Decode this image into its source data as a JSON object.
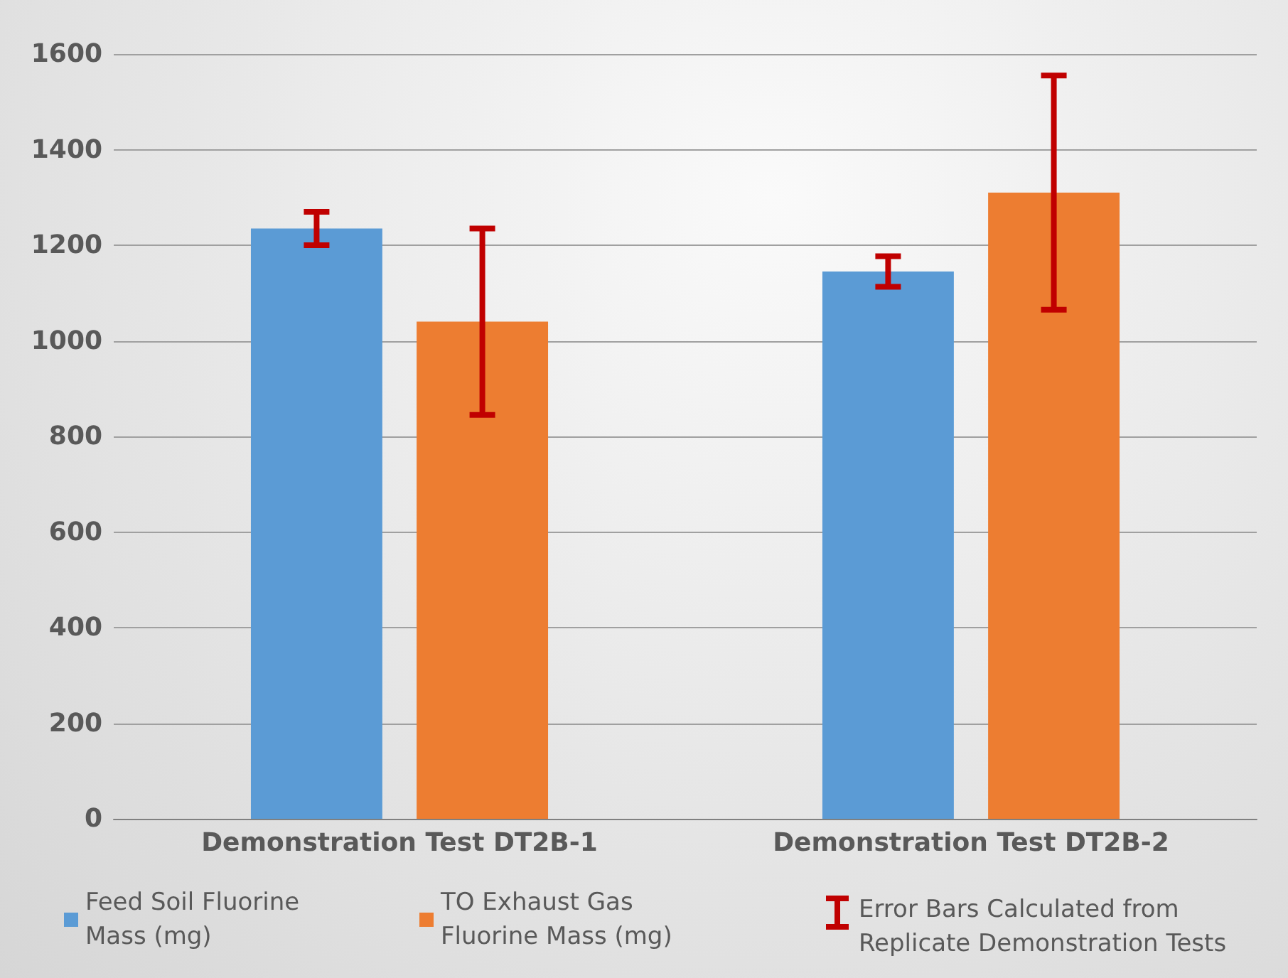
{
  "chart_data": {
    "type": "bar",
    "categories": [
      "Demonstration Test DT2B-1",
      "Demonstration Test DT2B-2"
    ],
    "series": [
      {
        "name": "Feed Soil Fluorine Mass (mg)",
        "color": "#5b9bd5",
        "values": [
          1235,
          1145
        ],
        "errors": [
          35,
          32
        ]
      },
      {
        "name": "TO Exhaust Gas Fluorine Mass (mg)",
        "color": "#ed7d31",
        "values": [
          1040,
          1310
        ],
        "errors": [
          195,
          245
        ]
      }
    ],
    "ylim": [
      0,
      1600
    ],
    "yticks": [
      0,
      200,
      400,
      600,
      800,
      1000,
      1200,
      1400,
      1600
    ],
    "grid": "y",
    "legend": "bottom",
    "annotations": [
      "Error Bars Calculated from Replicate Demonstration Tests"
    ]
  }
}
